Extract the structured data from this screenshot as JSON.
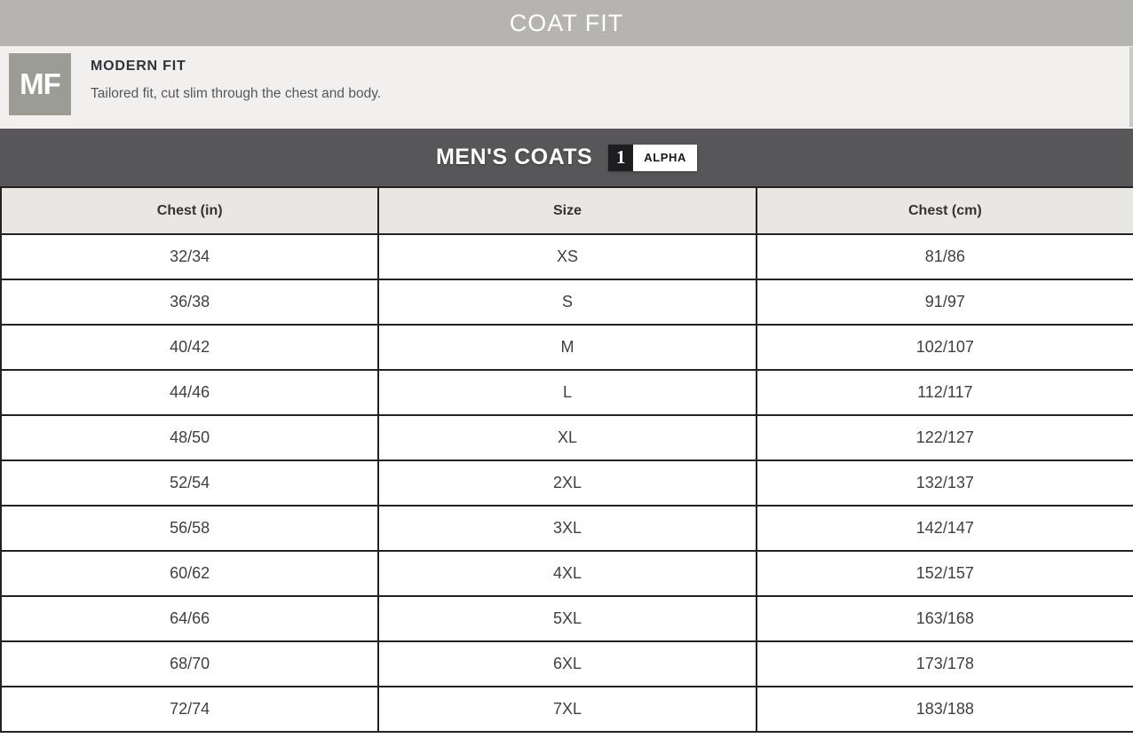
{
  "page": {
    "title": "COAT FIT"
  },
  "fit": {
    "badge": "MF",
    "name": "MODERN FIT",
    "description": "Tailored fit, cut slim through the chest and body."
  },
  "section": {
    "title": "MEN'S COATS",
    "badge_number": "1",
    "badge_label": "ALPHA"
  },
  "table": {
    "columns": [
      "Chest (in)",
      "Size",
      "Chest (cm)"
    ],
    "rows": [
      [
        "32/34",
        "XS",
        "81/86"
      ],
      [
        "36/38",
        "S",
        "91/97"
      ],
      [
        "40/42",
        "M",
        "102/107"
      ],
      [
        "44/46",
        "L",
        "112/117"
      ],
      [
        "48/50",
        "XL",
        "122/127"
      ],
      [
        "52/54",
        "2XL",
        "132/137"
      ],
      [
        "56/58",
        "3XL",
        "142/147"
      ],
      [
        "60/62",
        "4XL",
        "152/157"
      ],
      [
        "64/66",
        "5XL",
        "163/168"
      ],
      [
        "68/70",
        "6XL",
        "173/178"
      ],
      [
        "72/74",
        "7XL",
        "183/188"
      ]
    ]
  },
  "colors": {
    "top_bar_bg": "#b5b4b2",
    "fit_section_bg": "#f1f0ee",
    "fit_badge_bg": "#9b9d94",
    "dark_bar_bg": "#57575a",
    "table_header_bg": "#e8e7e4",
    "grid_line": "#222222"
  }
}
